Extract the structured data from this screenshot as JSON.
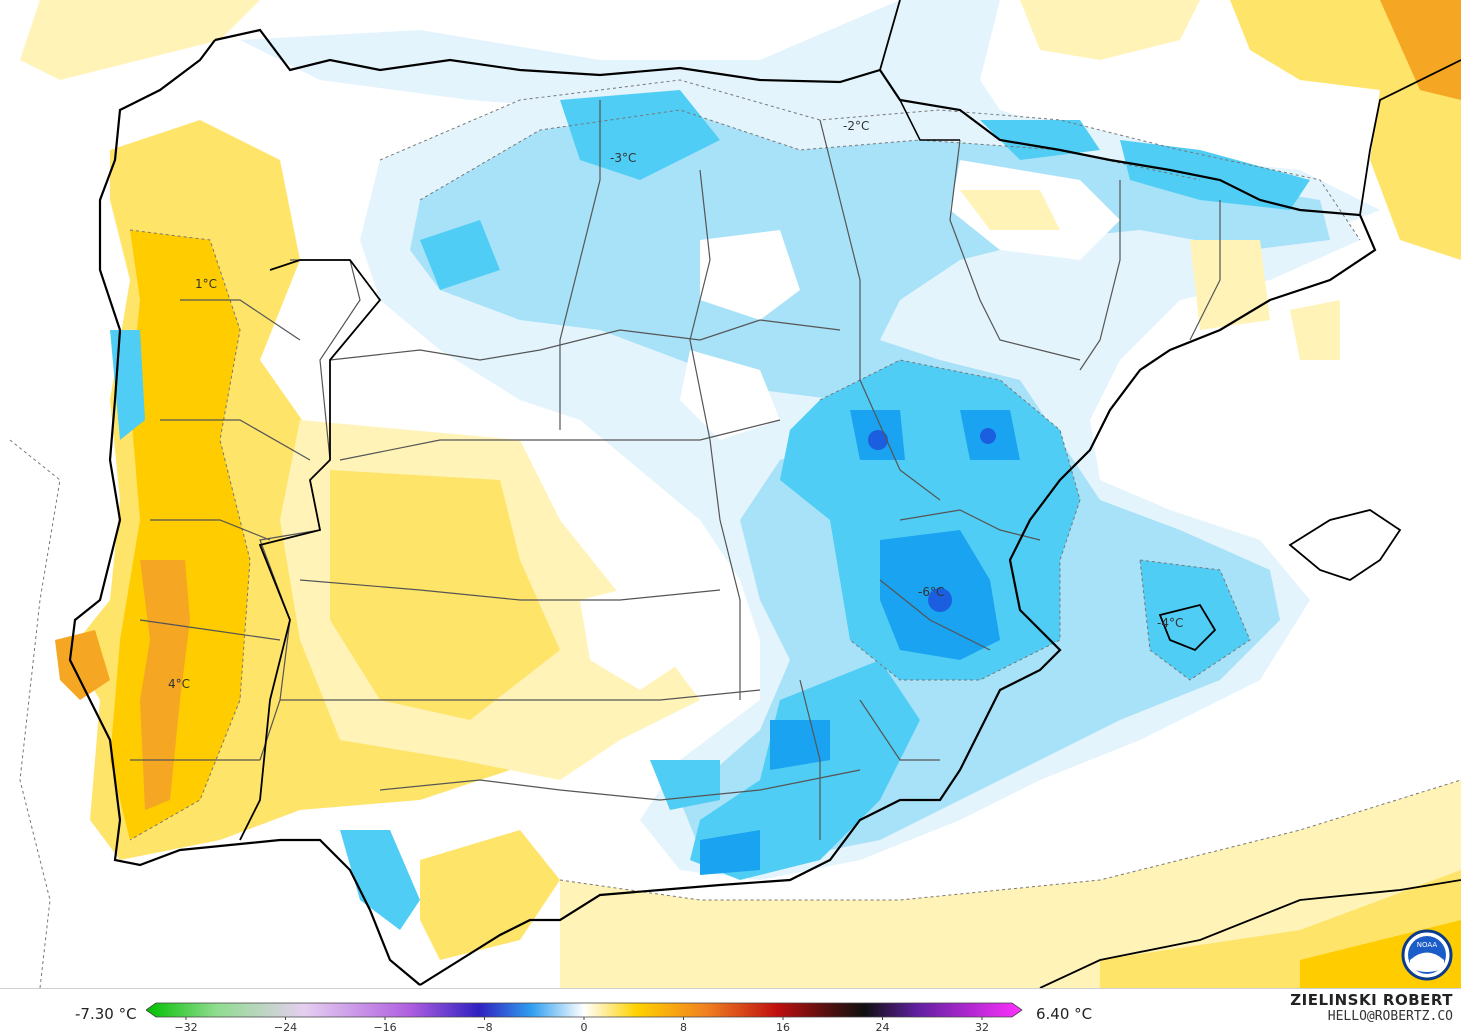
{
  "map": {
    "labels": [
      {
        "text": "-3°C"
      },
      {
        "text": "-2°C"
      },
      {
        "text": "1°C"
      },
      {
        "text": "-6°C"
      },
      {
        "text": "-4°C"
      },
      {
        "text": "4°C"
      }
    ]
  },
  "legend": {
    "min_label": "-7.30 °C",
    "max_label": "6.40 °C",
    "ticks": [
      "−32",
      "−24",
      "−16",
      "−8",
      "0",
      "8",
      "16",
      "24",
      "32"
    ]
  },
  "credit": {
    "name": "ZIELINSKI ROBERT",
    "email": "HELLO@ROBERTZ.CO"
  },
  "logo": {
    "text": "NOAA"
  },
  "colors": {
    "ocean_bg": "#ffffff",
    "warm_light": "#fff3b8",
    "warm_mid": "#ffe46a",
    "warm_strong": "#ffcc00",
    "warm_deep": "#f5a623",
    "cold_light": "#e3f4fc",
    "cold_mid": "#a8e2f8",
    "cold_strong": "#4fcdf4",
    "cold_deep": "#1aa3f0",
    "cold_core": "#1b5fe0",
    "border": "#000000",
    "region_line": "#555555"
  }
}
